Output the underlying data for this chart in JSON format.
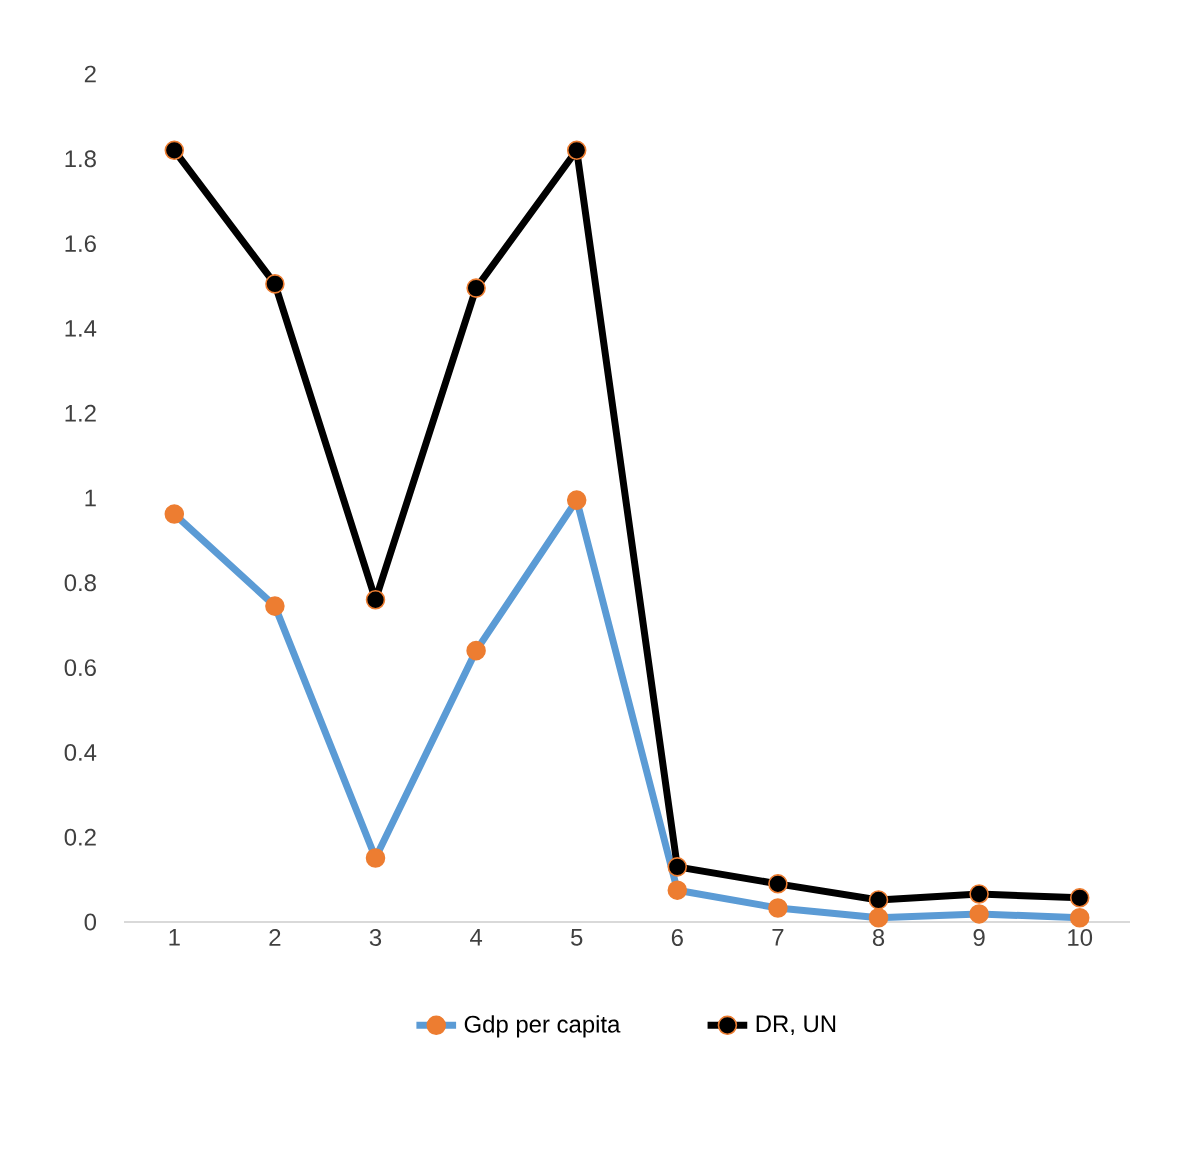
{
  "chart_data": {
    "type": "line",
    "categories": [
      "1",
      "2",
      "3",
      "4",
      "5",
      "6",
      "7",
      "8",
      "9",
      "10"
    ],
    "series": [
      {
        "name": "Gdp per capita",
        "color": "#5b9bd5",
        "values": [
          0.962,
          0.745,
          0.151,
          0.64,
          0.995,
          0.075,
          0.033,
          0.01,
          0.019,
          0.01
        ]
      },
      {
        "name": "DR, UN",
        "color": "#000000",
        "values": [
          1.82,
          1.505,
          0.76,
          1.495,
          1.82,
          0.13,
          0.09,
          0.052,
          0.066,
          0.057
        ]
      }
    ],
    "ylim": [
      0,
      2
    ],
    "yticks": [
      0,
      0.2,
      0.4,
      0.6,
      0.8,
      1,
      1.2,
      1.4,
      1.6,
      1.8,
      2
    ],
    "grid": false,
    "legend": "bottom",
    "marker": "circle",
    "line_style": "solid"
  }
}
